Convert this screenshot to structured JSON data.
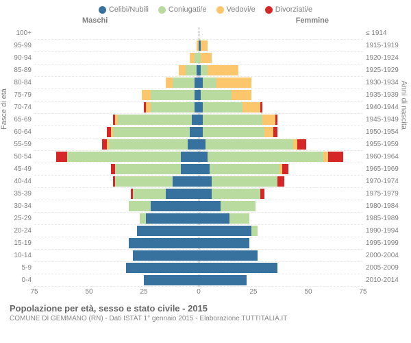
{
  "type": "population-pyramid",
  "legend": [
    {
      "label": "Celibi/Nubili",
      "color": "#37719e"
    },
    {
      "label": "Coniugati/e",
      "color": "#b9dba0"
    },
    {
      "label": "Vedovi/e",
      "color": "#fcc76c"
    },
    {
      "label": "Divorziati/e",
      "color": "#d62728"
    }
  ],
  "gender_labels": {
    "male": "Maschi",
    "female": "Femmine"
  },
  "axis_labels": {
    "left": "Fasce di età",
    "right": "Anni di nascita"
  },
  "title": "Popolazione per età, sesso e stato civile - 2015",
  "subtitle": "COMUNE DI GEMMANO (RN) - Dati ISTAT 1° gennaio 2015 - Elaborazione TUTTITALIA.IT",
  "max_value": 75,
  "x_ticks": [
    75,
    50,
    25,
    0,
    25,
    50,
    75
  ],
  "colors": {
    "single": "#37719e",
    "married": "#b9dba0",
    "widowed": "#fcc76c",
    "divorced": "#d62728",
    "grid": "#e8e8e8",
    "text": "#808080",
    "background": "#ffffff"
  },
  "age_groups": [
    {
      "age": "100+",
      "year": "≤ 1914",
      "m": {
        "s": 0,
        "m": 0,
        "w": 0,
        "d": 0
      },
      "f": {
        "s": 0,
        "m": 0,
        "w": 0,
        "d": 0
      }
    },
    {
      "age": "95-99",
      "year": "1915-1919",
      "m": {
        "s": 0,
        "m": 0,
        "w": 1,
        "d": 0
      },
      "f": {
        "s": 1,
        "m": 0,
        "w": 3,
        "d": 0
      }
    },
    {
      "age": "90-94",
      "year": "1920-1924",
      "m": {
        "s": 0,
        "m": 2,
        "w": 2,
        "d": 0
      },
      "f": {
        "s": 0,
        "m": 1,
        "w": 5,
        "d": 0
      }
    },
    {
      "age": "85-89",
      "year": "1925-1929",
      "m": {
        "s": 1,
        "m": 5,
        "w": 3,
        "d": 0
      },
      "f": {
        "s": 1,
        "m": 3,
        "w": 14,
        "d": 0
      }
    },
    {
      "age": "80-84",
      "year": "1930-1934",
      "m": {
        "s": 2,
        "m": 10,
        "w": 3,
        "d": 0
      },
      "f": {
        "s": 2,
        "m": 6,
        "w": 16,
        "d": 0
      }
    },
    {
      "age": "75-79",
      "year": "1935-1939",
      "m": {
        "s": 2,
        "m": 20,
        "w": 4,
        "d": 0
      },
      "f": {
        "s": 1,
        "m": 14,
        "w": 9,
        "d": 0
      }
    },
    {
      "age": "70-74",
      "year": "1940-1944",
      "m": {
        "s": 2,
        "m": 20,
        "w": 2,
        "d": 1
      },
      "f": {
        "s": 2,
        "m": 18,
        "w": 8,
        "d": 1
      }
    },
    {
      "age": "65-69",
      "year": "1945-1949",
      "m": {
        "s": 3,
        "m": 34,
        "w": 1,
        "d": 1
      },
      "f": {
        "s": 2,
        "m": 27,
        "w": 6,
        "d": 1
      }
    },
    {
      "age": "60-64",
      "year": "1950-1954",
      "m": {
        "s": 4,
        "m": 35,
        "w": 1,
        "d": 2
      },
      "f": {
        "s": 2,
        "m": 28,
        "w": 4,
        "d": 2
      }
    },
    {
      "age": "55-59",
      "year": "1955-1959",
      "m": {
        "s": 5,
        "m": 36,
        "w": 1,
        "d": 2
      },
      "f": {
        "s": 3,
        "m": 40,
        "w": 2,
        "d": 4
      }
    },
    {
      "age": "50-54",
      "year": "1960-1964",
      "m": {
        "s": 8,
        "m": 52,
        "w": 0,
        "d": 5
      },
      "f": {
        "s": 4,
        "m": 53,
        "w": 2,
        "d": 7
      }
    },
    {
      "age": "45-49",
      "year": "1965-1969",
      "m": {
        "s": 8,
        "m": 30,
        "w": 0,
        "d": 2
      },
      "f": {
        "s": 5,
        "m": 32,
        "w": 1,
        "d": 3
      }
    },
    {
      "age": "40-44",
      "year": "1970-1974",
      "m": {
        "s": 12,
        "m": 26,
        "w": 0,
        "d": 1
      },
      "f": {
        "s": 6,
        "m": 30,
        "w": 0,
        "d": 3
      }
    },
    {
      "age": "35-39",
      "year": "1975-1979",
      "m": {
        "s": 15,
        "m": 15,
        "w": 0,
        "d": 1
      },
      "f": {
        "s": 6,
        "m": 22,
        "w": 0,
        "d": 2
      }
    },
    {
      "age": "30-34",
      "year": "1980-1984",
      "m": {
        "s": 22,
        "m": 10,
        "w": 0,
        "d": 0
      },
      "f": {
        "s": 10,
        "m": 16,
        "w": 0,
        "d": 0
      }
    },
    {
      "age": "25-29",
      "year": "1985-1989",
      "m": {
        "s": 24,
        "m": 3,
        "w": 0,
        "d": 0
      },
      "f": {
        "s": 14,
        "m": 9,
        "w": 0,
        "d": 0
      }
    },
    {
      "age": "20-24",
      "year": "1990-1994",
      "m": {
        "s": 28,
        "m": 0,
        "w": 0,
        "d": 0
      },
      "f": {
        "s": 24,
        "m": 3,
        "w": 0,
        "d": 0
      }
    },
    {
      "age": "15-19",
      "year": "1995-1999",
      "m": {
        "s": 32,
        "m": 0,
        "w": 0,
        "d": 0
      },
      "f": {
        "s": 23,
        "m": 0,
        "w": 0,
        "d": 0
      }
    },
    {
      "age": "10-14",
      "year": "2000-2004",
      "m": {
        "s": 30,
        "m": 0,
        "w": 0,
        "d": 0
      },
      "f": {
        "s": 27,
        "m": 0,
        "w": 0,
        "d": 0
      }
    },
    {
      "age": "5-9",
      "year": "2005-2009",
      "m": {
        "s": 33,
        "m": 0,
        "w": 0,
        "d": 0
      },
      "f": {
        "s": 36,
        "m": 0,
        "w": 0,
        "d": 0
      }
    },
    {
      "age": "0-4",
      "year": "2010-2014",
      "m": {
        "s": 25,
        "m": 0,
        "w": 0,
        "d": 0
      },
      "f": {
        "s": 22,
        "m": 0,
        "w": 0,
        "d": 0
      }
    }
  ]
}
